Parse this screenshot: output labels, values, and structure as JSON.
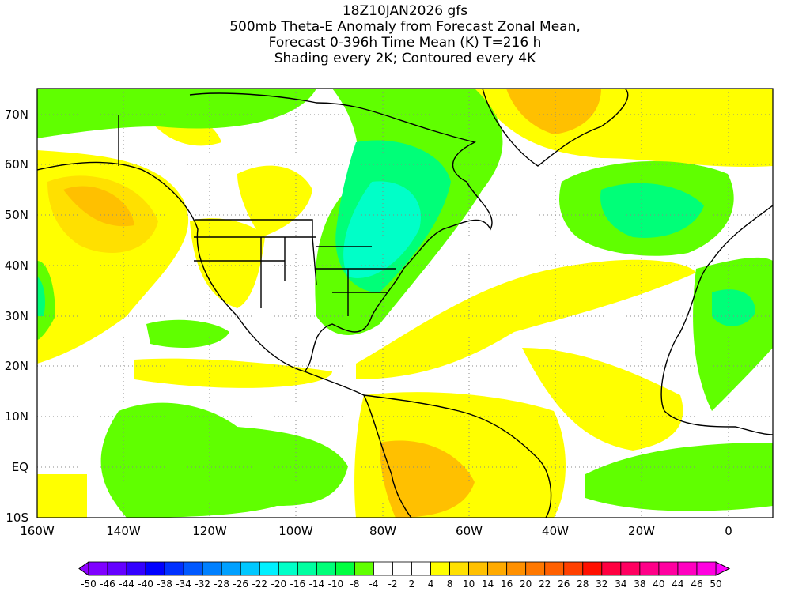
{
  "title": {
    "line1": "18Z10JAN2026 gfs",
    "line2": "500mb Theta-E Anomaly from Forecast Zonal Mean,",
    "line3": "Forecast 0-396h Time Mean (K) T=216 h",
    "line4": "Shading every 2K; Contoured every 4K"
  },
  "axes": {
    "lat_labels": [
      "70N",
      "60N",
      "50N",
      "40N",
      "30N",
      "20N",
      "10N",
      "EQ",
      "10S"
    ],
    "lon_labels": [
      "160W",
      "140W",
      "120W",
      "100W",
      "80W",
      "60W",
      "40W",
      "20W",
      "0"
    ]
  },
  "colorbar": {
    "labels": [
      "-50",
      "-46",
      "-44",
      "-40",
      "-38",
      "-34",
      "-32",
      "-28",
      "-26",
      "-22",
      "-20",
      "-16",
      "-14",
      "-10",
      "-8",
      "-4",
      "-2",
      "2",
      "4",
      "8",
      "10",
      "14",
      "16",
      "20",
      "22",
      "26",
      "28",
      "32",
      "34",
      "38",
      "40",
      "44",
      "46",
      "50"
    ],
    "colors": [
      "#7f00ff",
      "#6400ff",
      "#3300ff",
      "#0000ff",
      "#0030ff",
      "#0058ff",
      "#0080ff",
      "#00a0ff",
      "#00c8ff",
      "#00f0ff",
      "#00ffc8",
      "#00ffa0",
      "#00ff78",
      "#00ff40",
      "#60ff00",
      "#ffffff",
      "#ffffff",
      "#ffffff",
      "#ffff00",
      "#ffe000",
      "#ffc000",
      "#ffaa00",
      "#ff9000",
      "#ff7800",
      "#ff6000",
      "#ff4000",
      "#ff1000",
      "#ff0040",
      "#ff0060",
      "#ff0088",
      "#ff00a0",
      "#ff00c0",
      "#ff00e0"
    ],
    "low_arrow_color": "#8f00ff",
    "high_arrow_color": "#ff00ff"
  }
}
